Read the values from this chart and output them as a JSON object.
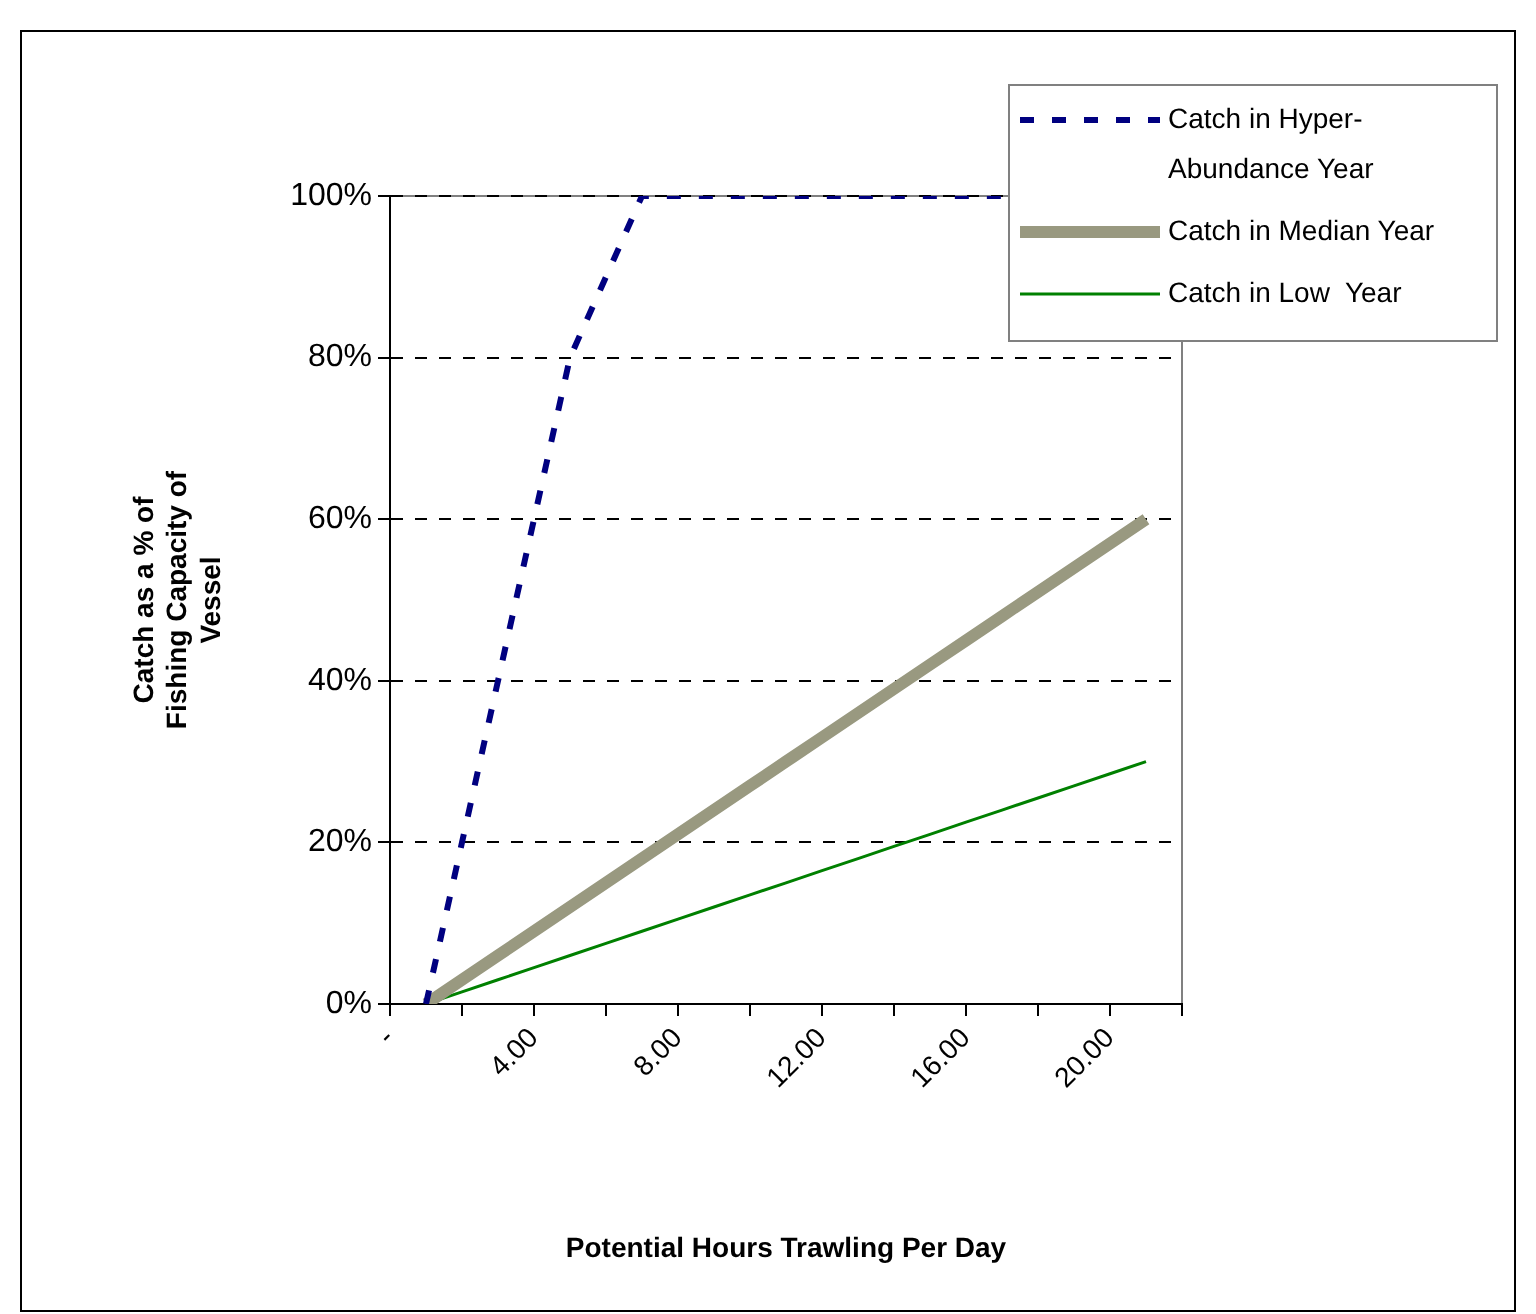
{
  "chart_data": {
    "type": "line",
    "xlabel": "Potential Hours Trawling Per Day",
    "ylabel": "Catch as a % of Fishing Capacity of Vessel",
    "x": [
      1,
      2,
      3,
      4,
      5,
      6,
      7,
      8,
      9,
      10,
      11,
      12,
      13,
      14,
      15,
      16,
      17,
      18,
      19,
      20,
      21
    ],
    "series": [
      {
        "name": "Catch in Hyper-Abundance Year",
        "color": "#000080",
        "line_style": "dashed",
        "values": [
          0,
          20,
          40,
          60,
          80,
          90,
          100,
          100,
          100,
          100,
          100,
          100,
          100,
          100,
          100,
          100,
          100,
          null,
          null,
          null,
          null
        ]
      },
      {
        "name": "Catch in Median Year",
        "color": "#999980",
        "values": [
          0,
          3,
          6,
          9,
          12,
          15,
          18,
          21,
          24,
          27,
          30,
          33,
          36,
          39,
          42,
          45,
          48,
          51,
          54,
          57,
          60
        ]
      },
      {
        "name": "Catch in Low  Year",
        "color": "#008000",
        "values": [
          0,
          1.5,
          3,
          4.5,
          6,
          7.5,
          9,
          10.5,
          12,
          13.5,
          15,
          16.5,
          18,
          19.5,
          21,
          22.5,
          24,
          25.5,
          27,
          28.5,
          30
        ]
      }
    ],
    "xlim": [
      0,
      22
    ],
    "xticks": [
      {
        "value": 0,
        "label": "-"
      },
      {
        "value": 2,
        "label": null
      },
      {
        "value": 4,
        "label": "4.00"
      },
      {
        "value": 6,
        "label": null
      },
      {
        "value": 8,
        "label": "8.00"
      },
      {
        "value": 10,
        "label": null
      },
      {
        "value": 12,
        "label": "12.00"
      },
      {
        "value": 14,
        "label": null
      },
      {
        "value": 16,
        "label": "16.00"
      },
      {
        "value": 18,
        "label": null
      },
      {
        "value": 20,
        "label": "20.00"
      },
      {
        "value": 22,
        "label": null
      }
    ],
    "ylim": [
      0,
      100
    ],
    "yticks": [
      {
        "value": 0,
        "label": "0%"
      },
      {
        "value": 20,
        "label": "20%"
      },
      {
        "value": 40,
        "label": "40%"
      },
      {
        "value": 60,
        "label": "60%"
      },
      {
        "value": 80,
        "label": "80%"
      },
      {
        "value": 100,
        "label": "100%"
      }
    ],
    "grid": "y",
    "legend": "top right",
    "marker": "none",
    "line_style": "solid"
  }
}
